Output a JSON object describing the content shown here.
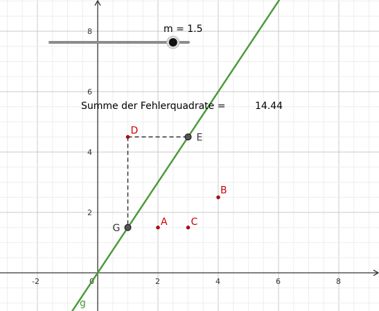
{
  "slider": {
    "label": "m = 1.5",
    "value": 1.5,
    "min": -2.5,
    "max": 2.0
  },
  "sum_label": "Summe der Fehlerquadrate =",
  "sum_value": "14.44",
  "line_label": "g",
  "colors": {
    "grid_minor": "#eeeeee",
    "grid_major": "#c8c8c8",
    "axis": "#333333",
    "line": "#4c9a3a",
    "point_red": "#cc0000",
    "point_dark": "#333333",
    "slider_track": "#8c8c8c",
    "slider_knob": "#111111"
  },
  "axes": {
    "x_ticks": [
      "-2",
      "0",
      "2",
      "4",
      "6",
      "8"
    ],
    "y_ticks": [
      "2",
      "4",
      "6",
      "8"
    ],
    "x_values": [
      -2,
      0,
      2,
      4,
      6,
      8
    ],
    "y_values": [
      2,
      4,
      6,
      8
    ]
  },
  "points": [
    {
      "label": "A",
      "x": 2,
      "y": 1.5,
      "color": "red"
    },
    {
      "label": "B",
      "x": 4,
      "y": 2.5,
      "color": "red"
    },
    {
      "label": "C",
      "x": 3,
      "y": 1.5,
      "color": "red"
    },
    {
      "label": "D",
      "x": 1,
      "y": 4.5,
      "color": "red"
    },
    {
      "label": "E",
      "x": 3,
      "y": 4.5,
      "color": "dark"
    },
    {
      "label": "G",
      "x": 1,
      "y": 1.5,
      "color": "dark"
    }
  ]
}
